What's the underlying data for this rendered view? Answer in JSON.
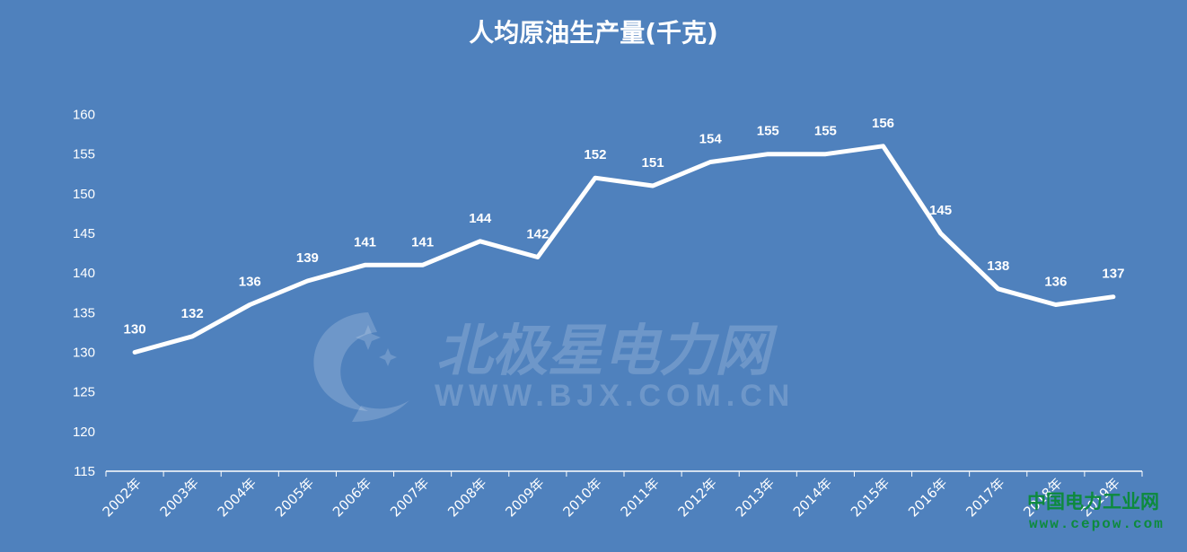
{
  "chart_data": {
    "type": "line",
    "title": "人均原油生产量(千克)",
    "xlabel": "",
    "ylabel": "",
    "categories": [
      "2002年",
      "2003年",
      "2004年",
      "2005年",
      "2006年",
      "2007年",
      "2008年",
      "2009年",
      "2010年",
      "2011年",
      "2012年",
      "2013年",
      "2014年",
      "2015年",
      "2016年",
      "2017年",
      "2018年",
      "2019年"
    ],
    "values": [
      130,
      132,
      136,
      139,
      141,
      141,
      144,
      142,
      152,
      151,
      154,
      155,
      155,
      156,
      145,
      138,
      136,
      137
    ],
    "ylim": [
      115,
      160
    ],
    "yticks": [
      115,
      120,
      125,
      130,
      135,
      140,
      145,
      150,
      155,
      160
    ],
    "grid": false,
    "data_labels": true,
    "colors": {
      "background": "#4f81bd",
      "line": "#ffffff"
    }
  },
  "watermarks": {
    "center_main": "北极星电力网",
    "center_sub": "WWW.BJX.COM.CN",
    "corner_main": "中国电力工业网",
    "corner_sub": "www.cepow.com"
  }
}
